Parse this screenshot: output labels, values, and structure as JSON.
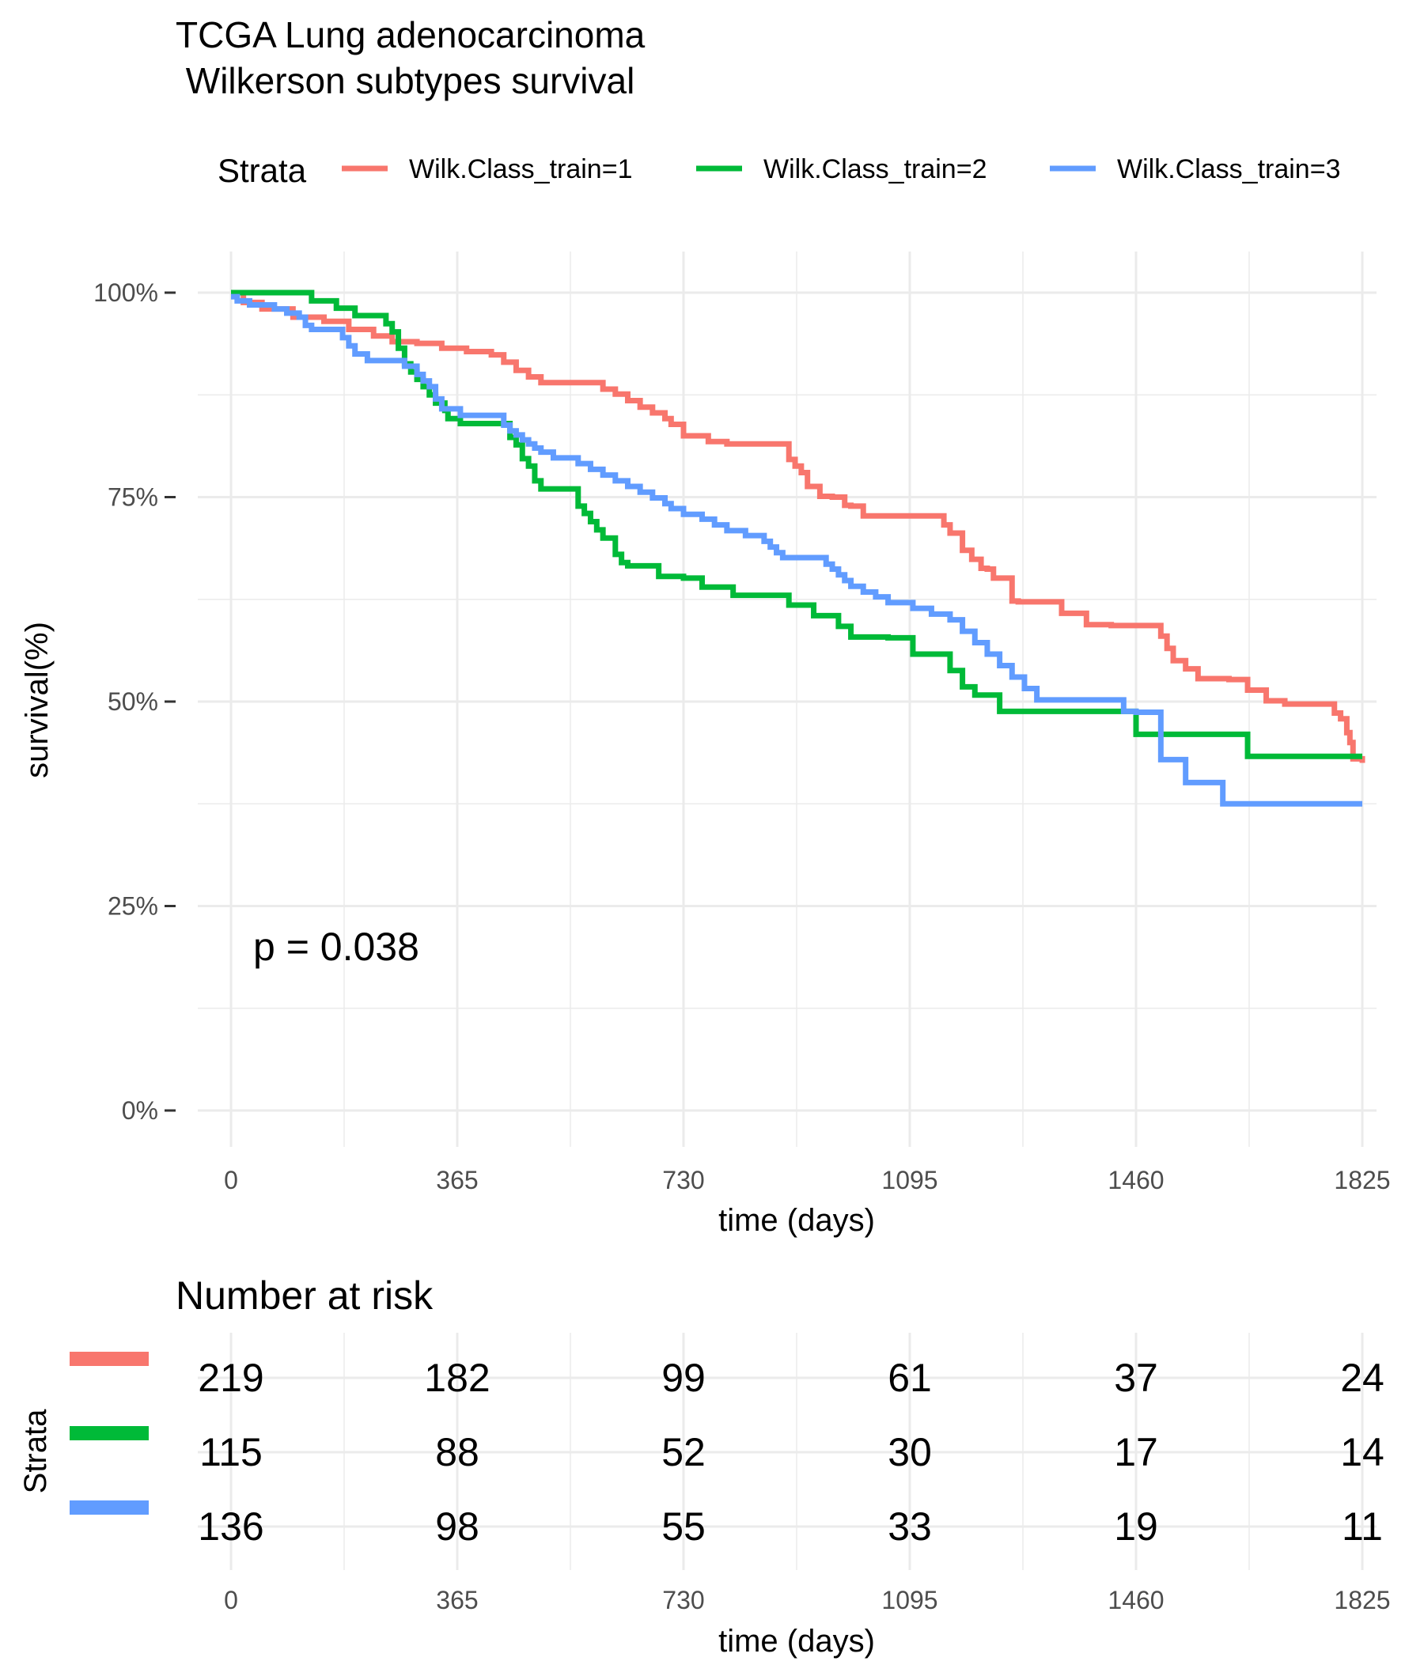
{
  "chart_data": [
    {
      "type": "line",
      "subtype": "kaplan-meier step",
      "title_line1": "TCGA Lung adenocarcinoma",
      "title_line2": " Wilkerson subtypes survival",
      "legend_title": "Strata",
      "legend_position": "top",
      "xlabel": "time (days)",
      "ylabel": "survival(%)",
      "xlim": [
        0,
        1825
      ],
      "ylim": [
        0,
        100
      ],
      "xticks": [
        0,
        365,
        730,
        1095,
        1460,
        1825
      ],
      "yticks": [
        0,
        25,
        50,
        75,
        100
      ],
      "ytick_labels": [
        "0%",
        "25%",
        "50%",
        "75%",
        "100%"
      ],
      "grid": true,
      "annotation": "p = 0.038",
      "series": [
        {
          "name": "Wilk.Class_train=1",
          "color": "#F8766D",
          "x": [
            0,
            20,
            50,
            100,
            150,
            190,
            230,
            260,
            300,
            340,
            380,
            420,
            440,
            460,
            480,
            500,
            530,
            560,
            590,
            600,
            620,
            640,
            660,
            680,
            700,
            710,
            730,
            770,
            800,
            840,
            880,
            900,
            910,
            920,
            930,
            950,
            970,
            990,
            1000,
            1020,
            1060,
            1100,
            1150,
            1160,
            1180,
            1195,
            1210,
            1220,
            1230,
            1260,
            1270,
            1300,
            1340,
            1380,
            1420,
            1480,
            1500,
            1510,
            1520,
            1540,
            1560,
            1610,
            1640,
            1670,
            1700,
            1780,
            1790,
            1800,
            1805,
            1810,
            1825
          ],
          "y": [
            100,
            98.8,
            98.0,
            97.0,
            96.5,
            95.5,
            94.7,
            94.0,
            93.8,
            93.2,
            92.8,
            92.4,
            91.5,
            90.5,
            89.7,
            89.0,
            89.0,
            89.0,
            89.0,
            88.2,
            87.6,
            86.8,
            86.0,
            85.3,
            84.6,
            83.9,
            82.5,
            81.8,
            81.5,
            81.5,
            81.5,
            79.6,
            78.8,
            78.0,
            76.3,
            75.1,
            75.0,
            74.0,
            73.9,
            72.7,
            72.7,
            72.7,
            71.6,
            70.6,
            68.5,
            67.4,
            66.3,
            66.2,
            65.1,
            62.3,
            62.2,
            62.2,
            60.8,
            59.4,
            59.3,
            59.3,
            58.0,
            56.5,
            55.0,
            54.0,
            52.8,
            52.7,
            51.4,
            50.1,
            49.7,
            48.6,
            47.9,
            46.2,
            45.0,
            43.0,
            42.5
          ]
        },
        {
          "name": "Wilk.Class_train=2",
          "color": "#00BA38",
          "x": [
            0,
            50,
            90,
            130,
            170,
            200,
            240,
            250,
            260,
            270,
            280,
            290,
            300,
            310,
            320,
            330,
            345,
            350,
            370,
            440,
            450,
            460,
            470,
            480,
            490,
            500,
            520,
            560,
            570,
            580,
            590,
            600,
            620,
            630,
            640,
            660,
            690,
            730,
            760,
            810,
            860,
            900,
            940,
            980,
            1000,
            1060,
            1100,
            1160,
            1180,
            1200,
            1240,
            1270,
            1300,
            1460,
            1500,
            1640,
            1700,
            1825
          ],
          "y": [
            100,
            100,
            100,
            99.0,
            98.1,
            97.2,
            97.2,
            96.2,
            95.2,
            93.2,
            91.3,
            90.3,
            89.4,
            88.5,
            87.5,
            86.5,
            85.6,
            84.6,
            84.0,
            84.0,
            82.3,
            81.4,
            79.7,
            78.8,
            77.0,
            76.0,
            76.0,
            73.9,
            73.0,
            72.0,
            71.0,
            70.0,
            68.0,
            67.0,
            66.6,
            66.6,
            65.3,
            65.1,
            64.0,
            63.0,
            63.0,
            61.8,
            60.5,
            59.2,
            57.9,
            57.8,
            55.8,
            53.8,
            51.8,
            50.8,
            48.8,
            48.8,
            48.8,
            46.0,
            46.0,
            43.3,
            43.3,
            43.3
          ]
        },
        {
          "name": "Wilk.Class_train=3",
          "color": "#619CFF",
          "x": [
            0,
            10,
            30,
            70,
            90,
            110,
            120,
            130,
            180,
            190,
            200,
            220,
            280,
            300,
            310,
            320,
            330,
            340,
            370,
            440,
            450,
            460,
            470,
            480,
            490,
            500,
            520,
            560,
            580,
            600,
            620,
            640,
            660,
            680,
            700,
            710,
            730,
            760,
            780,
            800,
            830,
            860,
            870,
            880,
            890,
            960,
            970,
            980,
            990,
            1000,
            1020,
            1040,
            1060,
            1100,
            1130,
            1160,
            1180,
            1200,
            1220,
            1240,
            1260,
            1280,
            1300,
            1440,
            1460,
            1500,
            1540,
            1600,
            1825
          ],
          "y": [
            99.5,
            99.0,
            98.5,
            98.0,
            97.5,
            97.0,
            96.0,
            95.5,
            94.5,
            93.5,
            92.5,
            91.7,
            91.0,
            90.0,
            89.2,
            88.5,
            87.0,
            85.8,
            85.0,
            83.8,
            83.1,
            82.6,
            82.0,
            81.5,
            81.0,
            80.5,
            79.8,
            79.1,
            78.4,
            77.7,
            77.0,
            76.3,
            75.6,
            74.9,
            74.2,
            73.6,
            72.9,
            72.3,
            71.6,
            70.9,
            70.3,
            69.6,
            68.9,
            68.2,
            67.6,
            66.8,
            66.2,
            65.5,
            64.8,
            64.1,
            63.4,
            62.8,
            62.1,
            61.4,
            60.7,
            60.0,
            58.6,
            57.2,
            55.8,
            54.4,
            53.0,
            51.6,
            50.2,
            48.8,
            48.7,
            42.9,
            40.1,
            37.5,
            37.5
          ]
        }
      ]
    },
    {
      "type": "table",
      "title": "Number at risk",
      "ylabel": "Strata",
      "xlabel": "time (days)",
      "xticks": [
        0,
        365,
        730,
        1095,
        1460,
        1825
      ],
      "rows": [
        {
          "strata": "Wilk.Class_train=1",
          "color": "#F8766D",
          "values": [
            219,
            182,
            99,
            61,
            37,
            24
          ]
        },
        {
          "strata": "Wilk.Class_train=2",
          "color": "#00BA38",
          "values": [
            115,
            88,
            52,
            30,
            17,
            14
          ]
        },
        {
          "strata": "Wilk.Class_train=3",
          "color": "#619CFF",
          "values": [
            136,
            98,
            55,
            33,
            19,
            11
          ]
        }
      ]
    }
  ]
}
